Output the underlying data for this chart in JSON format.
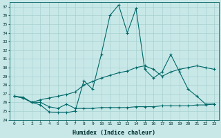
{
  "xlabel": "Humidex (Indice chaleur)",
  "ylabel": "",
  "bg_color": "#c8e8e8",
  "grid_color": "#a8d0d0",
  "line_color": "#006868",
  "xlim": [
    -0.5,
    23.5
  ],
  "ylim": [
    24,
    37.5
  ],
  "xticks": [
    0,
    1,
    2,
    3,
    4,
    5,
    6,
    7,
    8,
    9,
    10,
    11,
    12,
    13,
    14,
    15,
    16,
    17,
    18,
    19,
    20,
    21,
    22,
    23
  ],
  "yticks": [
    24,
    25,
    26,
    27,
    28,
    29,
    30,
    31,
    32,
    33,
    34,
    35,
    36,
    37
  ],
  "line1_x": [
    0,
    1,
    2,
    3,
    4,
    5,
    6,
    7,
    8,
    9,
    10,
    11,
    12,
    13,
    14,
    15,
    16,
    17,
    18,
    19,
    20,
    21,
    22,
    23
  ],
  "line1_y": [
    26.7,
    26.6,
    26.0,
    25.7,
    24.9,
    24.8,
    24.8,
    25.0,
    28.5,
    27.5,
    31.5,
    36.0,
    37.2,
    34.0,
    36.8,
    29.8,
    28.8,
    29.5,
    31.5,
    29.5,
    27.5,
    26.7,
    25.8,
    25.8
  ],
  "line2_x": [
    0,
    1,
    2,
    3,
    4,
    5,
    6,
    7,
    8,
    9,
    10,
    11,
    12,
    13,
    14,
    15,
    16,
    17,
    18,
    19,
    20,
    21,
    22,
    23
  ],
  "line2_y": [
    26.7,
    26.5,
    26.0,
    26.0,
    25.5,
    25.3,
    25.8,
    25.3,
    25.3,
    25.3,
    25.4,
    25.4,
    25.4,
    25.4,
    25.5,
    25.5,
    25.5,
    25.6,
    25.6,
    25.6,
    25.6,
    25.7,
    25.7,
    25.8
  ],
  "line3_x": [
    0,
    1,
    2,
    3,
    4,
    5,
    6,
    7,
    8,
    9,
    10,
    11,
    12,
    13,
    14,
    15,
    16,
    17,
    18,
    19,
    20,
    21,
    22,
    23
  ],
  "line3_y": [
    26.7,
    26.5,
    26.0,
    26.3,
    26.5,
    26.7,
    26.9,
    27.2,
    28.0,
    28.4,
    28.8,
    29.1,
    29.4,
    29.6,
    30.0,
    30.2,
    29.8,
    29.0,
    29.5,
    29.8,
    30.0,
    30.2,
    30.0,
    29.8
  ]
}
